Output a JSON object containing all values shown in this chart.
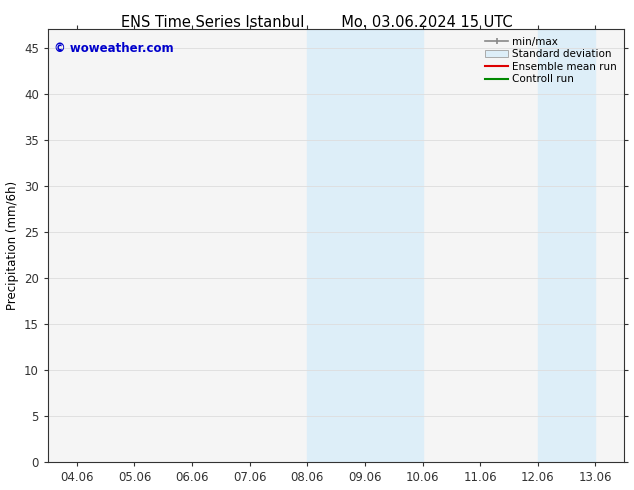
{
  "title_left": "ENS Time Series Istanbul",
  "title_right": "Mo. 03.06.2024 15 UTC",
  "ylabel": "Precipitation (mm/6h)",
  "xlim_dates": [
    "04.06",
    "05.06",
    "06.06",
    "07.06",
    "08.06",
    "09.06",
    "10.06",
    "11.06",
    "12.06",
    "13.06"
  ],
  "ylim": [
    0,
    47
  ],
  "yticks": [
    0,
    5,
    10,
    15,
    20,
    25,
    30,
    35,
    40,
    45
  ],
  "bg_color": "#ffffff",
  "plot_bg_color": "#f5f5f5",
  "shaded_intervals": [
    [
      4,
      5
    ],
    [
      5,
      6
    ],
    [
      8,
      9
    ]
  ],
  "shaded_color": "#ddeef8",
  "watermark_text": "© woweather.com",
  "watermark_color": "#0000cc",
  "legend_entries": [
    {
      "label": "min/max",
      "type": "line_caps",
      "color": "#888888"
    },
    {
      "label": "Standard deviation",
      "type": "patch",
      "facecolor": "#ddeef8",
      "edgecolor": "#aaaaaa"
    },
    {
      "label": "Ensemble mean run",
      "type": "line",
      "color": "#dd0000"
    },
    {
      "label": "Controll run",
      "type": "line",
      "color": "#008800"
    }
  ],
  "tick_label_fontsize": 8.5,
  "title_fontsize": 10.5,
  "ylabel_fontsize": 8.5,
  "spine_color": "#333333",
  "grid_color": "#dddddd",
  "tick_color": "#333333",
  "figsize": [
    6.34,
    4.9
  ],
  "dpi": 100
}
